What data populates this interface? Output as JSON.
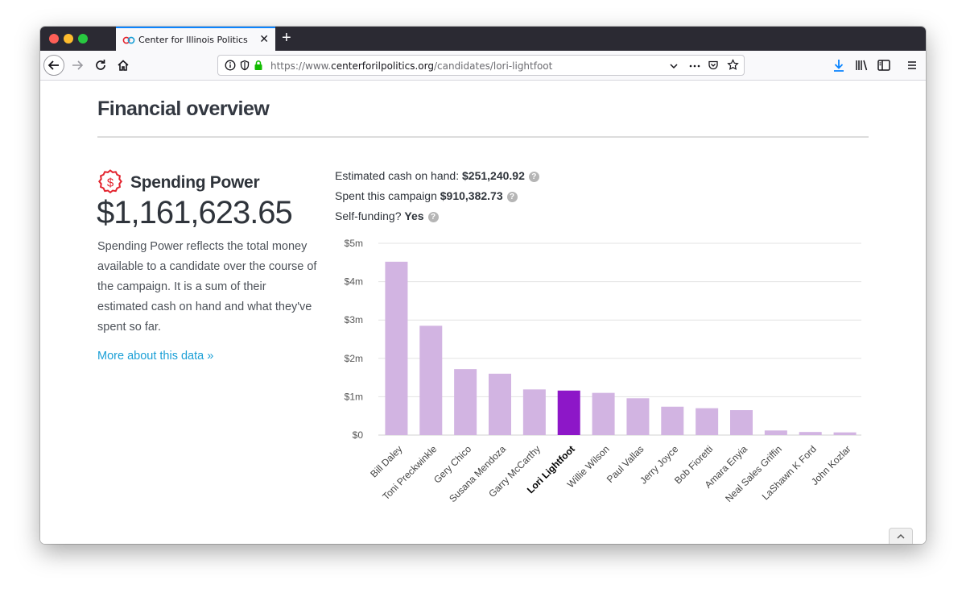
{
  "browser": {
    "tab_title": "Center for Illinois Politics",
    "url_prefix": "https://www.",
    "url_domain": "centerforilpolitics.org",
    "url_path": "/candidates/lori-lightfoot"
  },
  "page": {
    "title": "Financial overview",
    "spending_power": {
      "title": "Spending Power",
      "amount": "$1,161,623.65",
      "description": "Spending Power reflects the total money available to a candidate over the course of the campaign. It is a sum of their estimated cash on hand and what they've spent so far.",
      "more_link": "More about this data »"
    },
    "stats": [
      {
        "label": "Estimated cash on hand:",
        "value": "$251,240.92"
      },
      {
        "label": "Spent this campaign",
        "value": "$910,382.73"
      },
      {
        "label": "Self-funding?",
        "value": "Yes"
      }
    ],
    "help_glyph": "?"
  },
  "colors": {
    "bar": "#d2b4e2",
    "bar_highlight": "#8d17c8",
    "accent_link": "#1a9fd6",
    "spending_icon": "#e3232e"
  },
  "chart_data": {
    "type": "bar",
    "categories": [
      "Bill Daley",
      "Toni Preckwinkle",
      "Gery Chico",
      "Susana Mendoza",
      "Garry McCarthy",
      "Lori Lightfoot",
      "Willie Wilson",
      "Paul Vallas",
      "Jerry Joyce",
      "Bob Fioretti",
      "Amara Enyia",
      "Neal Sales Griffin",
      "LaShawn K Ford",
      "John Kozlar"
    ],
    "values": [
      4.52,
      2.85,
      1.72,
      1.6,
      1.19,
      1.16,
      1.1,
      0.96,
      0.74,
      0.7,
      0.65,
      0.12,
      0.08,
      0.07
    ],
    "highlight": "Lori Lightfoot",
    "yticks": [
      "$0",
      "$1m",
      "$2m",
      "$3m",
      "$4m",
      "$5m"
    ],
    "ylim": [
      0,
      5
    ],
    "grid": true
  }
}
